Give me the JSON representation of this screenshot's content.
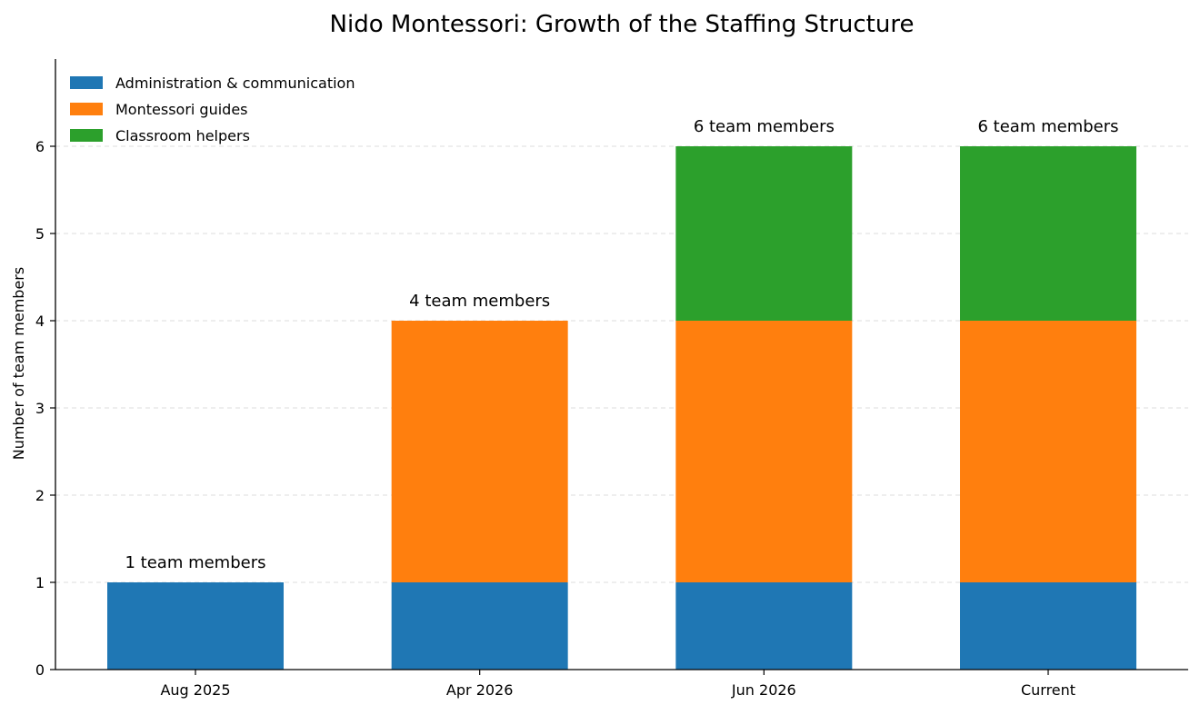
{
  "chart_data": {
    "type": "bar",
    "stacked": true,
    "title": "Nido Montessori: Growth of the Staffing Structure",
    "xlabel": "",
    "ylabel": "Number of team members",
    "categories": [
      "Aug 2025",
      "Apr 2026",
      "Jun 2026",
      "Current"
    ],
    "series": [
      {
        "name": "Administration & communication",
        "values": [
          1,
          1,
          1,
          1
        ],
        "color": "#1f77b4"
      },
      {
        "name": "Montessori guides",
        "values": [
          0,
          3,
          3,
          3
        ],
        "color": "#ff7f0e"
      },
      {
        "name": "Classroom helpers",
        "values": [
          0,
          0,
          2,
          2
        ],
        "color": "#2ca02c"
      }
    ],
    "totals_labels": [
      "1 team members",
      "4 team members",
      "6 team members",
      "6 team members"
    ],
    "ylim": [
      0,
      7
    ],
    "yticks": [
      0,
      1,
      2,
      3,
      4,
      5,
      6
    ],
    "grid": "horizontal-dashed",
    "legend_position": "top-left"
  }
}
